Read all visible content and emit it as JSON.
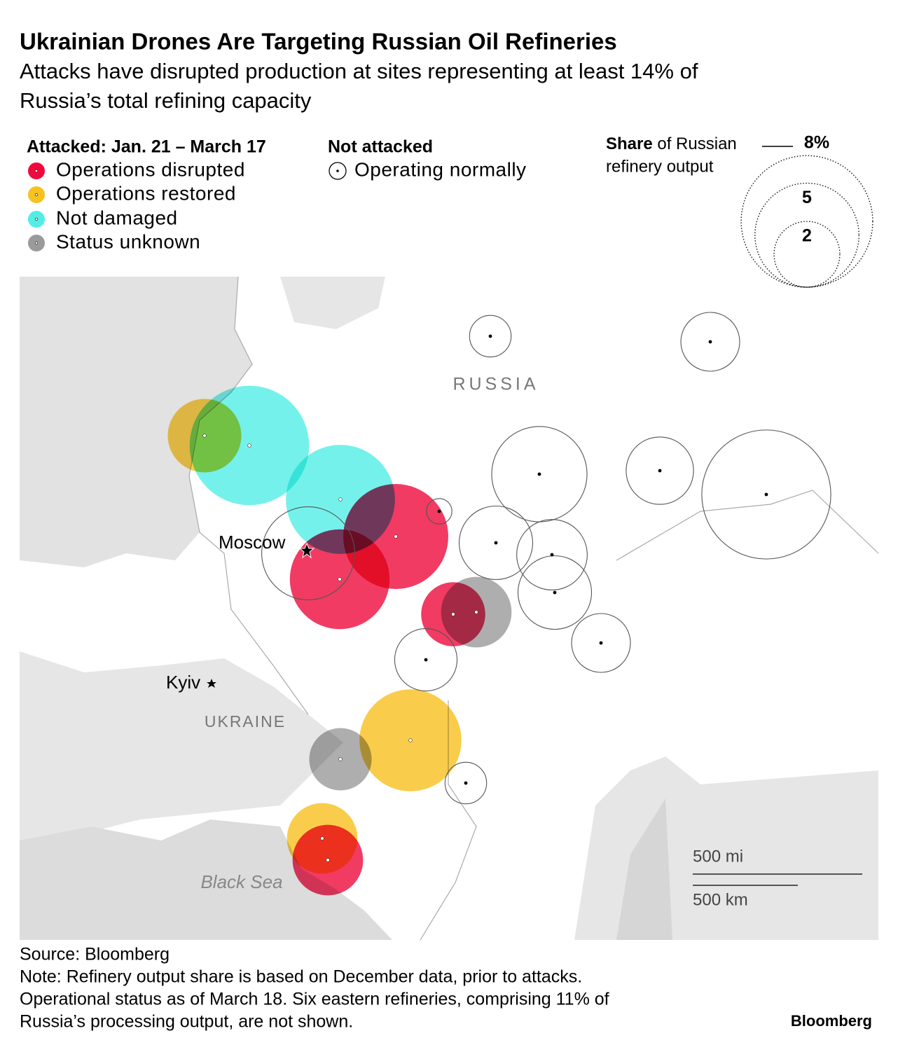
{
  "chart_data": {
    "type": "bubble-map",
    "title": "Ukrainian Drones Are Targeting Russian Oil Refineries",
    "subtitle": [
      "Attacks have disrupted production at sites representing at least 14% of",
      "Russia’s total refining capacity"
    ],
    "legend": {
      "attacked_title": "Attacked: Jan. 21 – March 17",
      "not_attacked_title": "Not attacked",
      "size_title_bold": "Share",
      "size_title_rest": [
        "of Russian",
        "refinery output"
      ]
    },
    "statuses": [
      {
        "name": "Operations disrupted",
        "color": "#ee0a3c"
      },
      {
        "name": "Operations restored",
        "color": "#f7c11e"
      },
      {
        "name": "Not damaged",
        "color": "#52eee6"
      },
      {
        "name": "Status unknown",
        "color": "#9a9a9a"
      },
      {
        "name": "Operating normally",
        "color": "none"
      }
    ],
    "size_ticks": [
      {
        "value": 8,
        "label": "8%"
      },
      5,
      2
    ],
    "refineries": {
      "status": [
        2,
        2,
        1,
        1,
        1,
        0,
        0,
        0,
        0,
        3,
        3,
        4,
        4,
        4,
        4,
        4,
        4,
        4,
        4,
        4,
        4,
        4,
        4,
        4
      ],
      "share": [
        6.6,
        5.5,
        2.5,
        4.8,
        2.3,
        5.1,
        4.6,
        1.9,
        2.3,
        2.3,
        1.8,
        0.8,
        1.6,
        4.2,
        2.1,
        7.7,
        0.3,
        2.5,
        2.3,
        2.5,
        1.6,
        1.8,
        0.8,
        4.0
      ]
    },
    "map_labels": {
      "russia": "RUSSIA",
      "moscow": "Moscow",
      "kyiv": "Kyiv",
      "ukraine": "UKRAINE",
      "black_sea": "Black Sea"
    },
    "scale": {
      "mi": "500 mi",
      "km": "500 km"
    },
    "source": "Source: Bloomberg",
    "note": [
      "Note: Refinery output share is based on December data, prior to attacks.",
      "Operational status as of March 18. Six eastern refineries, comprising 11% of",
      "Russia’s processing output, are not shown."
    ],
    "brand": "Bloomberg"
  }
}
